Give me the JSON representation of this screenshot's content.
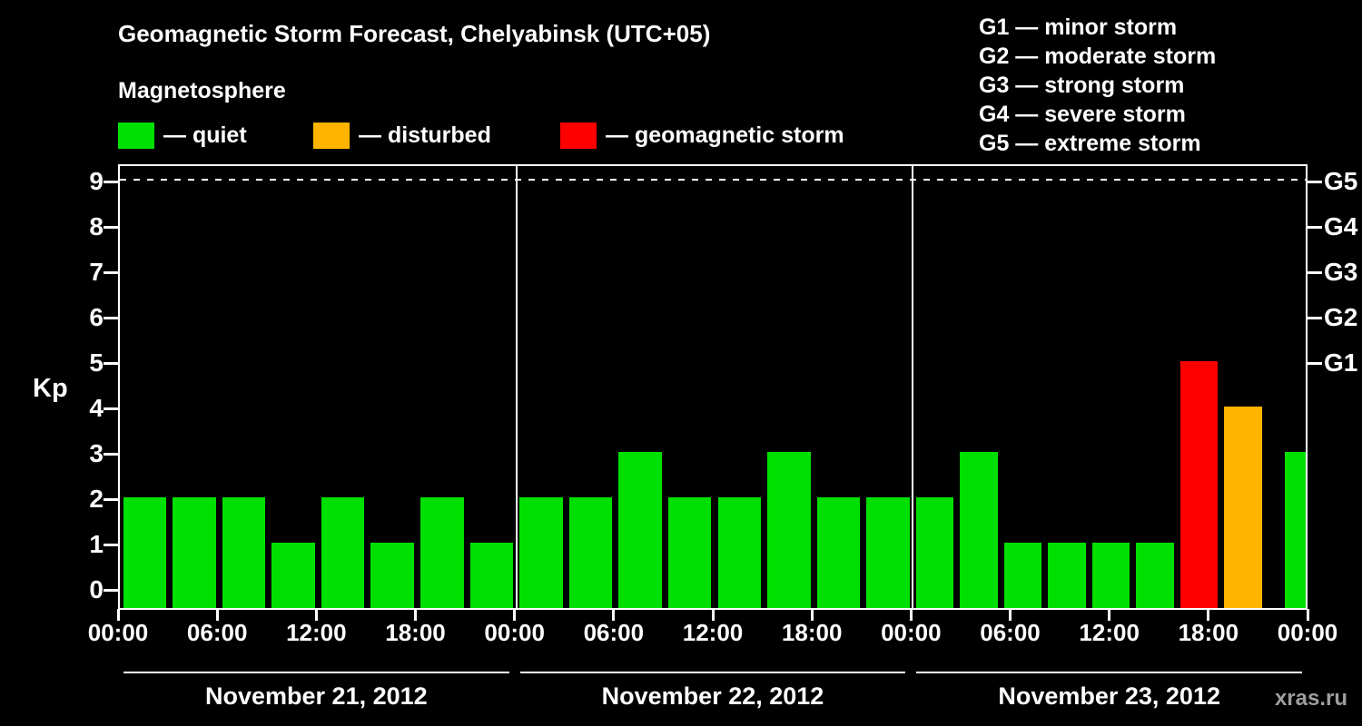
{
  "header": {
    "title": "Geomagnetic Storm Forecast, Chelyabinsk (UTC+05)",
    "subtitle": "Magnetosphere"
  },
  "legend": {
    "items": [
      {
        "key": "quiet",
        "label": "— quiet",
        "color": "#00e000"
      },
      {
        "key": "disturbed",
        "label": "— disturbed",
        "color": "#ffb400"
      },
      {
        "key": "storm",
        "label": "— geomagnetic storm",
        "color": "#ff0000"
      }
    ]
  },
  "g_scale_legend": {
    "lines": [
      "G1 — minor storm",
      "G2 — moderate storm",
      "G3 — strong storm",
      "G4 — severe storm",
      "G5 — extreme storm"
    ]
  },
  "watermark": "xras.ru",
  "chart_data": {
    "type": "bar",
    "title": "Geomagnetic Storm Forecast, Chelyabinsk (UTC+05)",
    "ylabel": "Kp",
    "ylim": [
      0,
      9.5
    ],
    "y_ticks": [
      0,
      1,
      2,
      3,
      4,
      5,
      6,
      7,
      8,
      9
    ],
    "x_tick_labels": [
      "00:00",
      "06:00",
      "12:00",
      "18:00",
      "00:00",
      "06:00",
      "12:00",
      "18:00",
      "00:00",
      "06:00",
      "12:00",
      "18:00",
      "00:00"
    ],
    "g_ticks": [
      {
        "label": "G1",
        "kp": 5
      },
      {
        "label": "G2",
        "kp": 6
      },
      {
        "label": "G3",
        "kp": 7
      },
      {
        "label": "G4",
        "kp": 8
      },
      {
        "label": "G5",
        "kp": 9
      }
    ],
    "grid": "single dashed horizontal line at Kp 9",
    "legend_position": "top-left",
    "days": [
      {
        "date": "November 21, 2012",
        "kp_values": [
          2,
          2,
          2,
          1,
          2,
          1,
          2,
          1
        ]
      },
      {
        "date": "November 22, 2012",
        "kp_values": [
          2,
          2,
          3,
          2,
          2,
          3,
          2,
          2
        ]
      },
      {
        "date": "November 23, 2012",
        "kp_values": [
          2,
          3,
          1,
          1,
          1,
          1,
          5,
          4,
          3
        ],
        "last_bar_clipped": true
      }
    ],
    "colors": {
      "quiet": "#00e000",
      "disturbed": "#ffb400",
      "storm": "#ff0000"
    },
    "color_rule": {
      "quiet_max_kp": 3,
      "disturbed_kp": 4,
      "storm_min_kp": 5
    }
  }
}
